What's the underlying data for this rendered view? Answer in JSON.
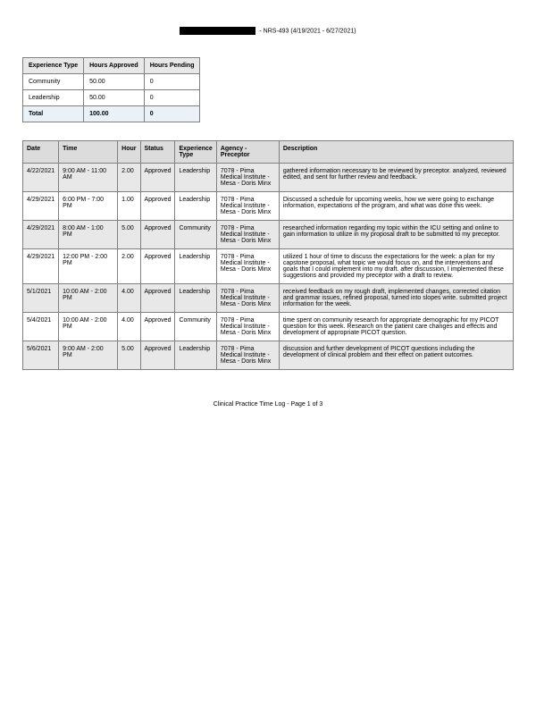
{
  "header": {
    "course_info": " - NRS-493 (4/19/2021 - 6/27/2021)"
  },
  "summary": {
    "headers": [
      "Experience Type",
      "Hours Approved",
      "Hours Pending"
    ],
    "rows": [
      {
        "type": "Community",
        "approved": "50.00",
        "pending": "0"
      },
      {
        "type": "Leadership",
        "approved": "50.00",
        "pending": "0"
      }
    ],
    "total": {
      "label": "Total",
      "approved": "100.00",
      "pending": "0"
    }
  },
  "log": {
    "headers": [
      "Date",
      "Time",
      "Hour",
      "Status",
      "Experience Type",
      "Agency - Preceptor",
      "Description"
    ],
    "rows": [
      {
        "date": "4/22/2021",
        "time": "9:00 AM - 11:00 AM",
        "hour": "2.00",
        "status": "Approved",
        "exp": "Leadership",
        "agency": "7078 - Pima Medical Institute - Mesa - Doris Minx",
        "desc": "gathered information necessary to be reviewed by preceptor. analyzed, reviewed edited, and sent for further review and feedback."
      },
      {
        "date": "4/29/2021",
        "time": "6:00 PM - 7:00 PM",
        "hour": "1.00",
        "status": "Approved",
        "exp": "Leadership",
        "agency": "7078 - Pima Medical Institute - Mesa - Doris Minx",
        "desc": "Discussed a schedule for upcoming weeks, how we were going to exchange information, expectations of the program, and what was done this week."
      },
      {
        "date": "4/29/2021",
        "time": "8:00 AM - 1:00 PM",
        "hour": "5.00",
        "status": "Approved",
        "exp": "Community",
        "agency": "7078 - Pima Medical Institute - Mesa - Doris Minx",
        "desc": "researched information regarding my topic within the ICU setting and online to gain information to utilize in my proposal draft to be submitted to my preceptor."
      },
      {
        "date": "4/29/2021",
        "time": "12:00 PM - 2:00 PM",
        "hour": "2.00",
        "status": "Approved",
        "exp": "Leadership",
        "agency": "7078 - Pima Medical Institute - Mesa - Doris Minx",
        "desc": "utilized 1 hour of time to discuss the expectations for the week: a plan for my capstone proposal, what topic we would focus on, and the interventions and goals that I could implement into my draft. after discussion, I implemented these suggestions and provided my preceptor with a draft to review."
      },
      {
        "date": "5/1/2021",
        "time": "10:00 AM - 2:00 PM",
        "hour": "4.00",
        "status": "Approved",
        "exp": "Leadership",
        "agency": "7078 - Pima Medical Institute - Mesa - Doris Minx",
        "desc": "received feedback on my rough draft, implemented changes, corrected citation and grammar issues, refined proposal, turned into slopes write. submitted project information for the week."
      },
      {
        "date": "5/4/2021",
        "time": "10:00 AM - 2:00 PM",
        "hour": "4.00",
        "status": "Approved",
        "exp": "Community",
        "agency": "7078 - Pima Medical Institute - Mesa - Doris Minx",
        "desc": "time spent on community research for appropriate demographic for my PICOT question for this week. Research on the patient care changes and effects and development of appropriate PICOT question."
      },
      {
        "date": "5/6/2021",
        "time": "9:00 AM - 2:00 PM",
        "hour": "5.00",
        "status": "Approved",
        "exp": "Leadership",
        "agency": "7078 - Pima Medical Institute - Mesa - Doris Minx",
        "desc": "discussion and further development of PICOT questions including the development of clinical problem and their effect on patient outcomes."
      }
    ]
  },
  "footer": {
    "text": "Clinical Practice Time Log - Page 1 of 3"
  }
}
